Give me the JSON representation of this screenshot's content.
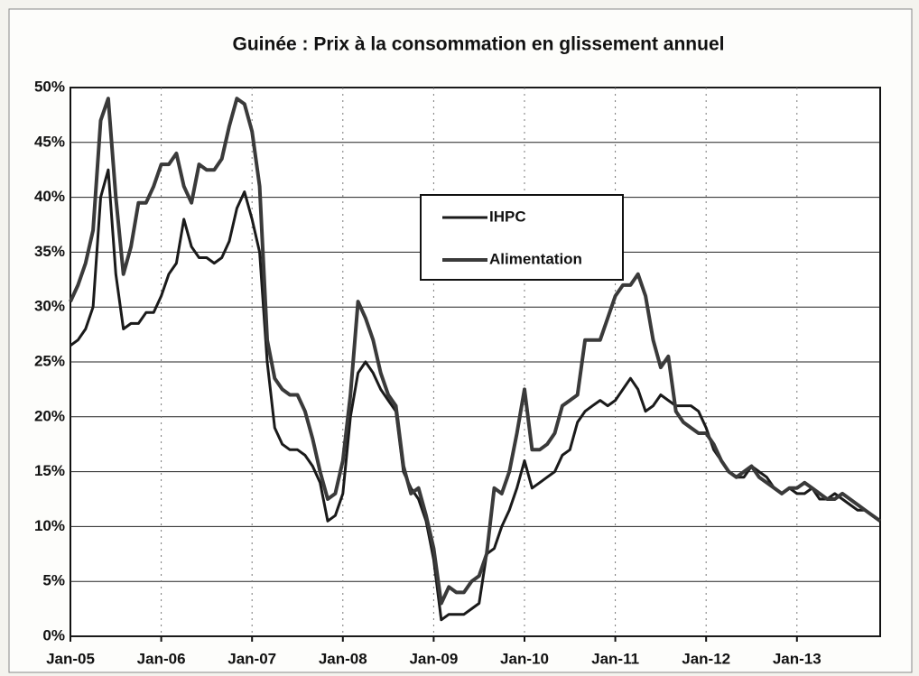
{
  "chart_data": {
    "type": "line",
    "title": "Guinée : Prix à la consommation en glissement annuel",
    "categories": [
      "Jan-05",
      null,
      null,
      null,
      null,
      null,
      null,
      null,
      null,
      null,
      null,
      null,
      "Jan-06",
      null,
      null,
      null,
      null,
      null,
      null,
      null,
      null,
      null,
      null,
      null,
      "Jan-07",
      null,
      null,
      null,
      null,
      null,
      null,
      null,
      null,
      null,
      null,
      null,
      "Jan-08",
      null,
      null,
      null,
      null,
      null,
      null,
      null,
      null,
      null,
      null,
      null,
      "Jan-09",
      null,
      null,
      null,
      null,
      null,
      null,
      null,
      null,
      null,
      null,
      null,
      "Jan-10",
      null,
      null,
      null,
      null,
      null,
      null,
      null,
      null,
      null,
      null,
      null,
      "Jan-11",
      null,
      null,
      null,
      null,
      null,
      null,
      null,
      null,
      null,
      null,
      null,
      "Jan-12",
      null,
      null,
      null,
      null,
      null,
      null,
      null,
      null,
      null,
      null,
      null,
      "Jan-13",
      null,
      null,
      null,
      null,
      null,
      null,
      null,
      null,
      null,
      null,
      null
    ],
    "series": [
      {
        "name": "IHPC",
        "color": "#1a1a1a",
        "values": [
          26.5,
          27,
          28,
          30,
          40,
          42.5,
          33,
          28,
          28.5,
          28.5,
          29.5,
          29.5,
          31,
          33,
          34,
          38,
          35.5,
          34.5,
          34.5,
          34,
          34.5,
          36,
          39,
          40.5,
          38,
          35,
          25,
          19,
          17.5,
          17,
          17,
          16.5,
          15.5,
          14,
          10.5,
          11,
          13,
          20,
          24,
          25,
          24,
          22.5,
          21.5,
          20.5,
          15,
          13.5,
          12.5,
          10.5,
          7,
          1.5,
          2,
          2,
          2,
          2.5,
          3,
          7.5,
          8,
          10,
          11.5,
          13.5,
          16,
          13.5,
          14,
          14.5,
          15,
          16.5,
          17,
          19.5,
          20.5,
          21,
          21.5,
          21,
          21.5,
          22.5,
          23.5,
          22.5,
          20.5,
          21,
          22,
          21.5,
          21,
          21,
          21,
          20.5,
          19,
          17,
          16,
          15,
          14.5,
          14.5,
          15.5,
          15,
          14.5,
          13.5,
          13,
          13.5,
          13,
          13,
          13.5,
          12.5,
          12.5,
          13,
          12.5,
          12,
          11.5,
          11.5,
          11,
          10.5
        ]
      },
      {
        "name": "Alimentation",
        "color": "#3a3a3a",
        "values": [
          30.5,
          32,
          34,
          37,
          47,
          49,
          40,
          33,
          35.5,
          39.5,
          39.5,
          41,
          43,
          43,
          44,
          41,
          39.5,
          43,
          42.5,
          42.5,
          43.5,
          46.5,
          49,
          48.5,
          46,
          41,
          27,
          23.5,
          22.5,
          22,
          22,
          20.5,
          18,
          15,
          12.5,
          13,
          16,
          22,
          30.5,
          29,
          27,
          24,
          22,
          21,
          15.5,
          13,
          13.5,
          11,
          8,
          3,
          4.5,
          4,
          4,
          5,
          5.5,
          7.5,
          13.5,
          13,
          15,
          18.5,
          22.5,
          17,
          17,
          17.5,
          18.5,
          21,
          21.5,
          22,
          27,
          27,
          27,
          29,
          31,
          32,
          32,
          33,
          31,
          27,
          24.5,
          25.5,
          20.5,
          19.5,
          19,
          18.5,
          18.5,
          17.5,
          16,
          15,
          14.5,
          15,
          15.5,
          14.5,
          14,
          13.5,
          13,
          13.5,
          13.5,
          14,
          13.5,
          13,
          12.5,
          12.5,
          13,
          12.5,
          12,
          11.5,
          11,
          10.5
        ]
      }
    ],
    "ylim": [
      0,
      50
    ],
    "yticks": [
      {
        "value": 0,
        "label": "0%"
      },
      {
        "value": 5,
        "label": "5%"
      },
      {
        "value": 10,
        "label": "10%"
      },
      {
        "value": 15,
        "label": "15%"
      },
      {
        "value": 20,
        "label": "20%"
      },
      {
        "value": 25,
        "label": "25%"
      },
      {
        "value": 30,
        "label": "30%"
      },
      {
        "value": 35,
        "label": "35%"
      },
      {
        "value": 40,
        "label": "40%"
      },
      {
        "value": 45,
        "label": "45%"
      },
      {
        "value": 50,
        "label": "50%"
      }
    ],
    "grid": true,
    "legend": "upper center"
  }
}
